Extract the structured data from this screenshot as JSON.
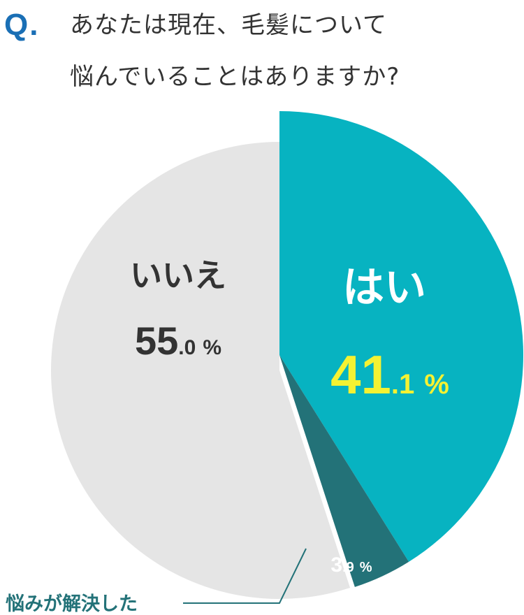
{
  "question": {
    "mark": "Q.",
    "line1": "あなたは現在、毛髪について",
    "line2": "悩んでいることはありますか?"
  },
  "chart_data": {
    "type": "pie",
    "slices": [
      {
        "label": "はい",
        "int": "41",
        "dec": ".1",
        "pct": "%",
        "value": 41.1,
        "color": "#07b3c1",
        "label_color": "#ffffff",
        "value_color": "#f5f232"
      },
      {
        "label": "悩みが解決した",
        "int": "3",
        "dec": ".9",
        "pct": "%",
        "value": 3.9,
        "color": "#237278",
        "label_color": "#237278",
        "value_color": "#ffffff"
      },
      {
        "label": "いいえ",
        "int": "55",
        "dec": ".0",
        "pct": "%",
        "value": 55.0,
        "color": "#e5e5e5",
        "label_color": "#333333",
        "value_color": "#333333"
      }
    ]
  }
}
